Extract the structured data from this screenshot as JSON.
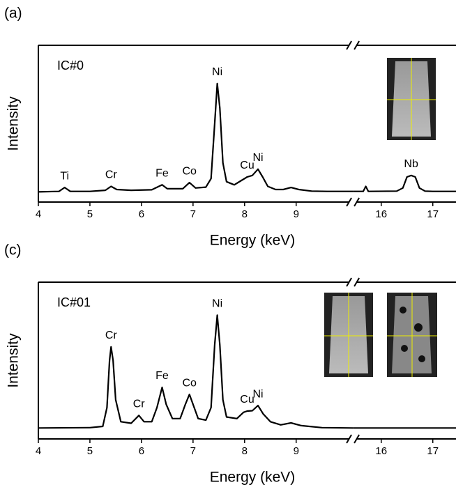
{
  "chart_data": [
    {
      "type": "line",
      "panel": "(a)",
      "label": "IC#0",
      "x_label": "Energy (keV)",
      "y_label": "Intensity",
      "xlim": [
        4,
        17.45
      ],
      "xbreak": [
        10.1,
        15.45
      ],
      "ylim": [
        0,
        100
      ],
      "xticks": [
        4,
        5,
        6,
        7,
        8,
        9,
        16,
        17
      ],
      "x": [
        4.0,
        4.4,
        4.51,
        4.62,
        5.0,
        5.3,
        5.41,
        5.52,
        5.8,
        6.2,
        6.4,
        6.5,
        6.8,
        6.93,
        7.05,
        7.25,
        7.35,
        7.42,
        7.47,
        7.52,
        7.58,
        7.65,
        7.8,
        7.95,
        8.05,
        8.15,
        8.26,
        8.35,
        8.45,
        8.6,
        8.75,
        8.9,
        9.05,
        9.3,
        9.6,
        10.1,
        15.45,
        15.65,
        15.7,
        15.75,
        16.3,
        16.42,
        16.5,
        16.58,
        16.66,
        16.74,
        16.85,
        17.0,
        17.45
      ],
      "series": [
        {
          "name": "IC#0",
          "color": "#000000",
          "values": [
            6.5,
            6.8,
            9.3,
            6.8,
            6.8,
            7.5,
            10,
            8,
            7.5,
            7.8,
            11,
            8.5,
            8.5,
            12.4,
            9,
            9.5,
            15,
            50,
            75.6,
            60,
            25,
            13,
            11,
            14,
            16,
            17,
            21,
            16,
            10,
            8,
            8,
            9.3,
            8,
            7,
            6.8,
            6.8,
            6.8,
            6.8,
            10,
            6.8,
            7,
            9,
            16,
            17,
            16,
            9,
            7,
            6.8,
            6.8
          ]
        }
      ],
      "annotations": [
        {
          "text": "Ti",
          "x": 4.51
        },
        {
          "text": "Cr",
          "x": 5.41
        },
        {
          "text": "Fe",
          "x": 6.4
        },
        {
          "text": "Co",
          "x": 6.93
        },
        {
          "text": "Ni",
          "x": 7.47
        },
        {
          "text": "Cu",
          "x": 8.05
        },
        {
          "text": "Ni",
          "x": 8.26
        },
        {
          "text": "Nb",
          "x": 16.58
        }
      ]
    },
    {
      "type": "line",
      "panel": "(c)",
      "label": "IC#01",
      "x_label": "Energy (keV)",
      "y_label": "Intensity",
      "xlim": [
        4,
        17.45
      ],
      "xbreak": [
        10.1,
        15.45
      ],
      "ylim": [
        0,
        100
      ],
      "xticks": [
        4,
        5,
        6,
        7,
        8,
        9,
        16,
        17
      ],
      "x": [
        4.0,
        5.0,
        5.25,
        5.33,
        5.38,
        5.41,
        5.45,
        5.5,
        5.6,
        5.8,
        5.95,
        6.05,
        6.2,
        6.3,
        6.4,
        6.48,
        6.6,
        6.75,
        6.85,
        6.93,
        7.0,
        7.1,
        7.25,
        7.35,
        7.42,
        7.47,
        7.52,
        7.58,
        7.65,
        7.85,
        7.98,
        8.05,
        8.15,
        8.26,
        8.36,
        8.5,
        8.7,
        8.9,
        9.1,
        9.5,
        10.1,
        15.45,
        17.45
      ],
      "series": [
        {
          "name": "IC#01",
          "color": "#000000",
          "values": [
            7,
            7.2,
            8,
            20,
            50,
            58.7,
            50,
            25,
            11,
            10,
            15,
            11,
            11,
            20,
            32.9,
            22,
            13,
            13,
            22,
            28.4,
            22,
            13,
            12,
            20,
            60,
            79,
            60,
            25,
            14,
            13,
            17,
            17.8,
            18,
            21.3,
            16,
            11,
            9,
            10.2,
            8.5,
            7.2,
            7,
            7,
            7
          ]
        }
      ],
      "annotations": [
        {
          "text": "Cr",
          "x": 5.41
        },
        {
          "text": "Cr",
          "x": 5.95
        },
        {
          "text": "Fe",
          "x": 6.4
        },
        {
          "text": "Co",
          "x": 6.93
        },
        {
          "text": "Ni",
          "x": 7.47
        },
        {
          "text": "Cu",
          "x": 8.05
        },
        {
          "text": "Ni",
          "x": 8.26
        }
      ]
    }
  ]
}
